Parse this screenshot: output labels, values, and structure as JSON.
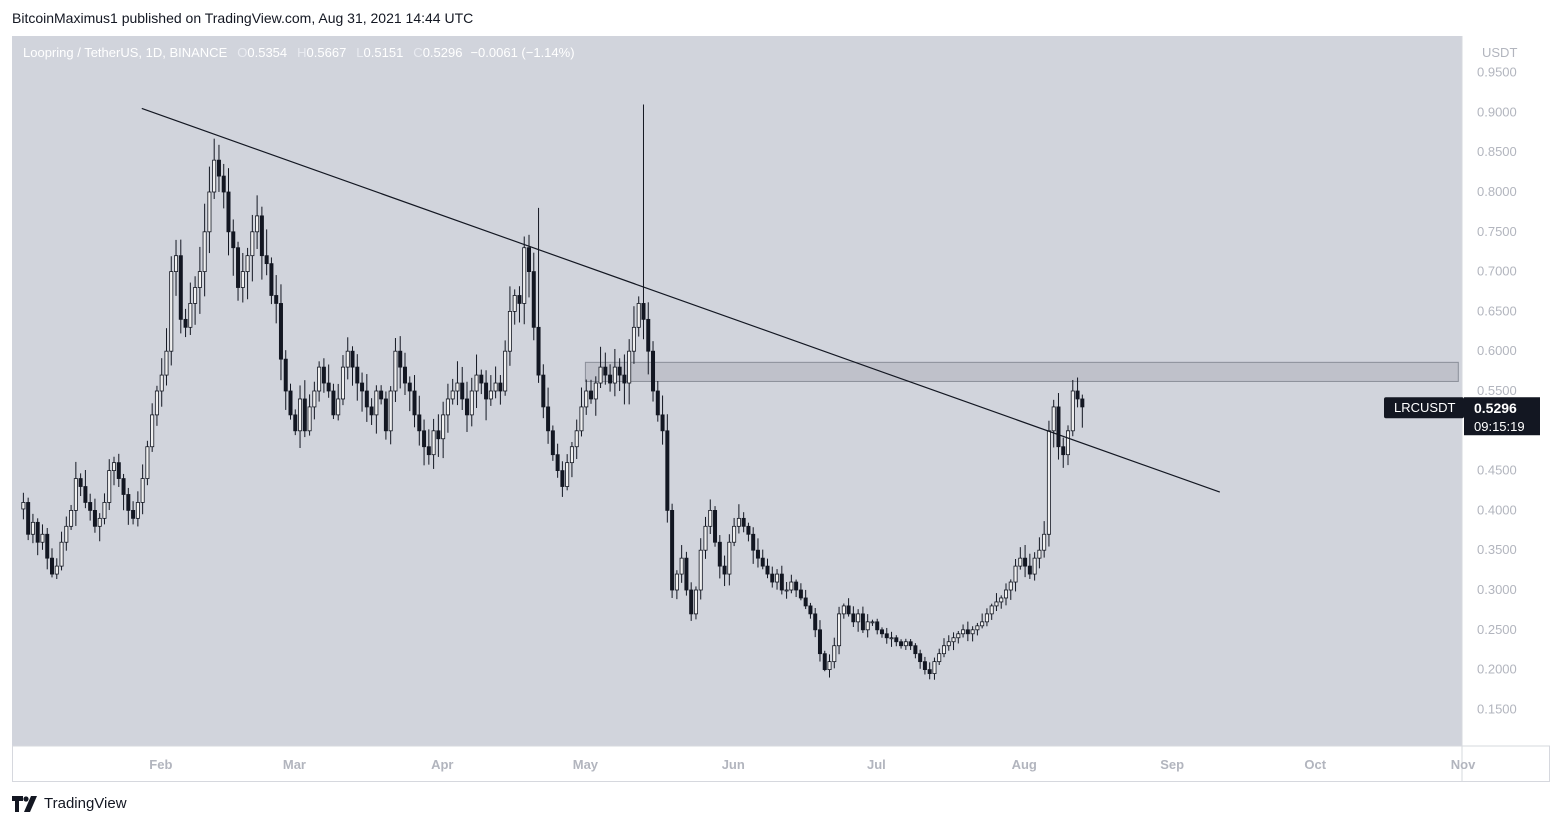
{
  "header": {
    "publisher_line": "BitcoinMaximus1 published on TradingView.com, Aug 31, 2021 14:44 UTC"
  },
  "legend": {
    "symbol": "Loopring / TetherUS, 1D, BINANCE",
    "open_label": "O",
    "open": "0.5354",
    "high_label": "H",
    "high": "0.5667",
    "low_label": "L",
    "low": "0.5151",
    "close_label": "C",
    "close": "0.5296",
    "change": "−0.0061 (−1.14%)"
  },
  "price_axis": {
    "currency": "USDT",
    "ticks": [
      "0.9500",
      "0.9000",
      "0.8500",
      "0.8000",
      "0.7500",
      "0.7000",
      "0.6500",
      "0.6000",
      "0.5500",
      "0.4500",
      "0.4000",
      "0.3500",
      "0.3000",
      "0.2500",
      "0.2000",
      "0.1500"
    ]
  },
  "time_axis": {
    "ticks": [
      "Feb",
      "Mar",
      "Apr",
      "May",
      "Jun",
      "Jul",
      "Aug",
      "Sep",
      "Oct",
      "Nov"
    ]
  },
  "price_tag": {
    "ticker": "LRCUSDT",
    "price": "0.5296",
    "countdown": "09:15:19"
  },
  "footer": {
    "brand": "TradingView"
  },
  "colors": {
    "background": "#d1d4dc",
    "candle": "#131722",
    "trendline": "#131722",
    "zone": "#b8bbc4",
    "tag": "#131722"
  },
  "chart_data": {
    "type": "candlestick",
    "title": "Loopring / TetherUS, 1D, BINANCE",
    "ylabel": "USDT",
    "ylim": [
      0.1,
      0.98
    ],
    "x_ticks": [
      "Feb",
      "Mar",
      "Apr",
      "May",
      "Jun",
      "Jul",
      "Aug",
      "Sep",
      "Oct",
      "Nov"
    ],
    "y_ticks": [
      0.95,
      0.9,
      0.85,
      0.8,
      0.75,
      0.7,
      0.65,
      0.6,
      0.55,
      0.45,
      0.4,
      0.35,
      0.3,
      0.25,
      0.2,
      0.15
    ],
    "first_date": "2021-01-01",
    "last_price": 0.5296,
    "trendline": {
      "from": {
        "date": "2021-01-28",
        "price": 0.905
      },
      "to": {
        "date": "2021-09-11",
        "price": 0.423
      }
    },
    "resistance_zone": {
      "from_date": "2021-05-01",
      "to_date": "2021-10-31",
      "low": 0.562,
      "high": 0.586
    },
    "closes": [
      0.41,
      0.37,
      0.385,
      0.36,
      0.37,
      0.34,
      0.32,
      0.33,
      0.36,
      0.38,
      0.4,
      0.44,
      0.43,
      0.41,
      0.4,
      0.38,
      0.39,
      0.41,
      0.45,
      0.46,
      0.44,
      0.42,
      0.4,
      0.39,
      0.41,
      0.44,
      0.48,
      0.52,
      0.55,
      0.57,
      0.6,
      0.7,
      0.72,
      0.64,
      0.63,
      0.66,
      0.68,
      0.7,
      0.75,
      0.8,
      0.84,
      0.82,
      0.8,
      0.75,
      0.73,
      0.68,
      0.7,
      0.72,
      0.75,
      0.77,
      0.72,
      0.71,
      0.67,
      0.66,
      0.59,
      0.55,
      0.52,
      0.5,
      0.54,
      0.5,
      0.53,
      0.55,
      0.58,
      0.56,
      0.55,
      0.52,
      0.54,
      0.58,
      0.6,
      0.58,
      0.56,
      0.55,
      0.53,
      0.52,
      0.55,
      0.54,
      0.5,
      0.55,
      0.6,
      0.58,
      0.56,
      0.55,
      0.52,
      0.5,
      0.48,
      0.47,
      0.5,
      0.49,
      0.52,
      0.54,
      0.55,
      0.56,
      0.54,
      0.52,
      0.55,
      0.57,
      0.56,
      0.54,
      0.55,
      0.56,
      0.55,
      0.6,
      0.65,
      0.67,
      0.66,
      0.73,
      0.7,
      0.63,
      0.57,
      0.53,
      0.5,
      0.47,
      0.45,
      0.43,
      0.46,
      0.48,
      0.5,
      0.53,
      0.55,
      0.54,
      0.56,
      0.58,
      0.57,
      0.56,
      0.58,
      0.57,
      0.56,
      0.6,
      0.63,
      0.66,
      0.64,
      0.6,
      0.55,
      0.52,
      0.5,
      0.4,
      0.3,
      0.32,
      0.34,
      0.3,
      0.27,
      0.3,
      0.35,
      0.38,
      0.4,
      0.36,
      0.33,
      0.32,
      0.36,
      0.38,
      0.39,
      0.38,
      0.37,
      0.35,
      0.34,
      0.33,
      0.32,
      0.31,
      0.32,
      0.3,
      0.3,
      0.31,
      0.3,
      0.29,
      0.28,
      0.27,
      0.25,
      0.22,
      0.2,
      0.21,
      0.23,
      0.27,
      0.28,
      0.27,
      0.26,
      0.27,
      0.25,
      0.26,
      0.26,
      0.25,
      0.245,
      0.24,
      0.24,
      0.235,
      0.23,
      0.235,
      0.23,
      0.22,
      0.21,
      0.2,
      0.195,
      0.21,
      0.22,
      0.23,
      0.235,
      0.24,
      0.245,
      0.25,
      0.245,
      0.25,
      0.255,
      0.26,
      0.27,
      0.28,
      0.285,
      0.29,
      0.3,
      0.31,
      0.33,
      0.34,
      0.33,
      0.32,
      0.34,
      0.35,
      0.37,
      0.5,
      0.53,
      0.48,
      0.47,
      0.5,
      0.55,
      0.54,
      0.53
    ]
  }
}
